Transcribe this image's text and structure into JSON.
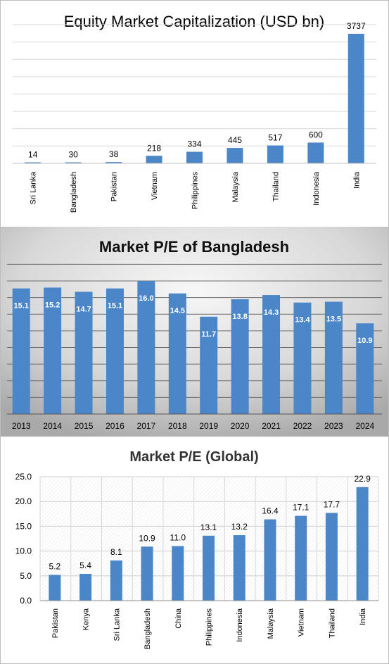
{
  "charts": [
    {
      "id": "cap",
      "title": "Equity Market Capitalization (USD bn)"
    },
    {
      "id": "bdpe",
      "title": "Market P/E of Bangladesh"
    },
    {
      "id": "globalpe",
      "title": "Market P/E  (Global)"
    }
  ],
  "chart_data": [
    {
      "type": "bar",
      "title": "Equity Market Capitalization (USD bn)",
      "categories": [
        "Sri Lanka",
        "Bangladesh",
        "Pakistan",
        "Vietnam",
        "Philippines",
        "Malaysia",
        "Thailand",
        "Indonesia",
        "India"
      ],
      "values": [
        14,
        30,
        38,
        218,
        334,
        445,
        517,
        600,
        3737
      ],
      "data_labels": [
        "14",
        "30",
        "38",
        "218",
        "334",
        "445",
        "517",
        "600",
        "3737"
      ],
      "ylim": [
        0,
        4000
      ],
      "grid": true,
      "bar_color": "#4a86c8",
      "xlabel": "",
      "ylabel": ""
    },
    {
      "type": "bar",
      "title": "Market P/E of Bangladesh",
      "categories": [
        "2013",
        "2014",
        "2015",
        "2016",
        "2017",
        "2018",
        "2019",
        "2020",
        "2021",
        "2022",
        "2023",
        "2024"
      ],
      "values": [
        15.1,
        15.2,
        14.7,
        15.1,
        16.0,
        14.5,
        11.7,
        13.8,
        14.3,
        13.4,
        13.5,
        10.9
      ],
      "data_labels": [
        "15.1",
        "15.2",
        "14.7",
        "15.1",
        "16.0",
        "14.5",
        "11.7",
        "13.8",
        "14.3",
        "13.4",
        "13.5",
        "10.9"
      ],
      "ylim": [
        0,
        18
      ],
      "grid": true,
      "bar_color": "#4a86c8",
      "background": "#dcdcdc",
      "xlabel": "",
      "ylabel": ""
    },
    {
      "type": "bar",
      "title": "Market P/E  (Global)",
      "categories": [
        "Pakistan",
        "Kenya",
        "Sri Lanka",
        "Bangladesh",
        "China",
        "Philippines",
        "Indonesia",
        "Malaysia",
        "Vietnam",
        "Thailand",
        "India"
      ],
      "values": [
        5.2,
        5.4,
        8.1,
        10.9,
        11.0,
        13.1,
        13.2,
        16.4,
        17.1,
        17.7,
        22.9
      ],
      "data_labels": [
        "5.2",
        "5.4",
        "8.1",
        "10.9",
        "11.0",
        "13.1",
        "13.2",
        "16.4",
        "17.1",
        "17.7",
        "22.9"
      ],
      "ylim": [
        0,
        25
      ],
      "yticks": [
        "0.0",
        "5.0",
        "10.0",
        "15.0",
        "20.0",
        "25.0"
      ],
      "grid": true,
      "bar_color": "#4a86c8",
      "xlabel": "",
      "ylabel": ""
    }
  ]
}
